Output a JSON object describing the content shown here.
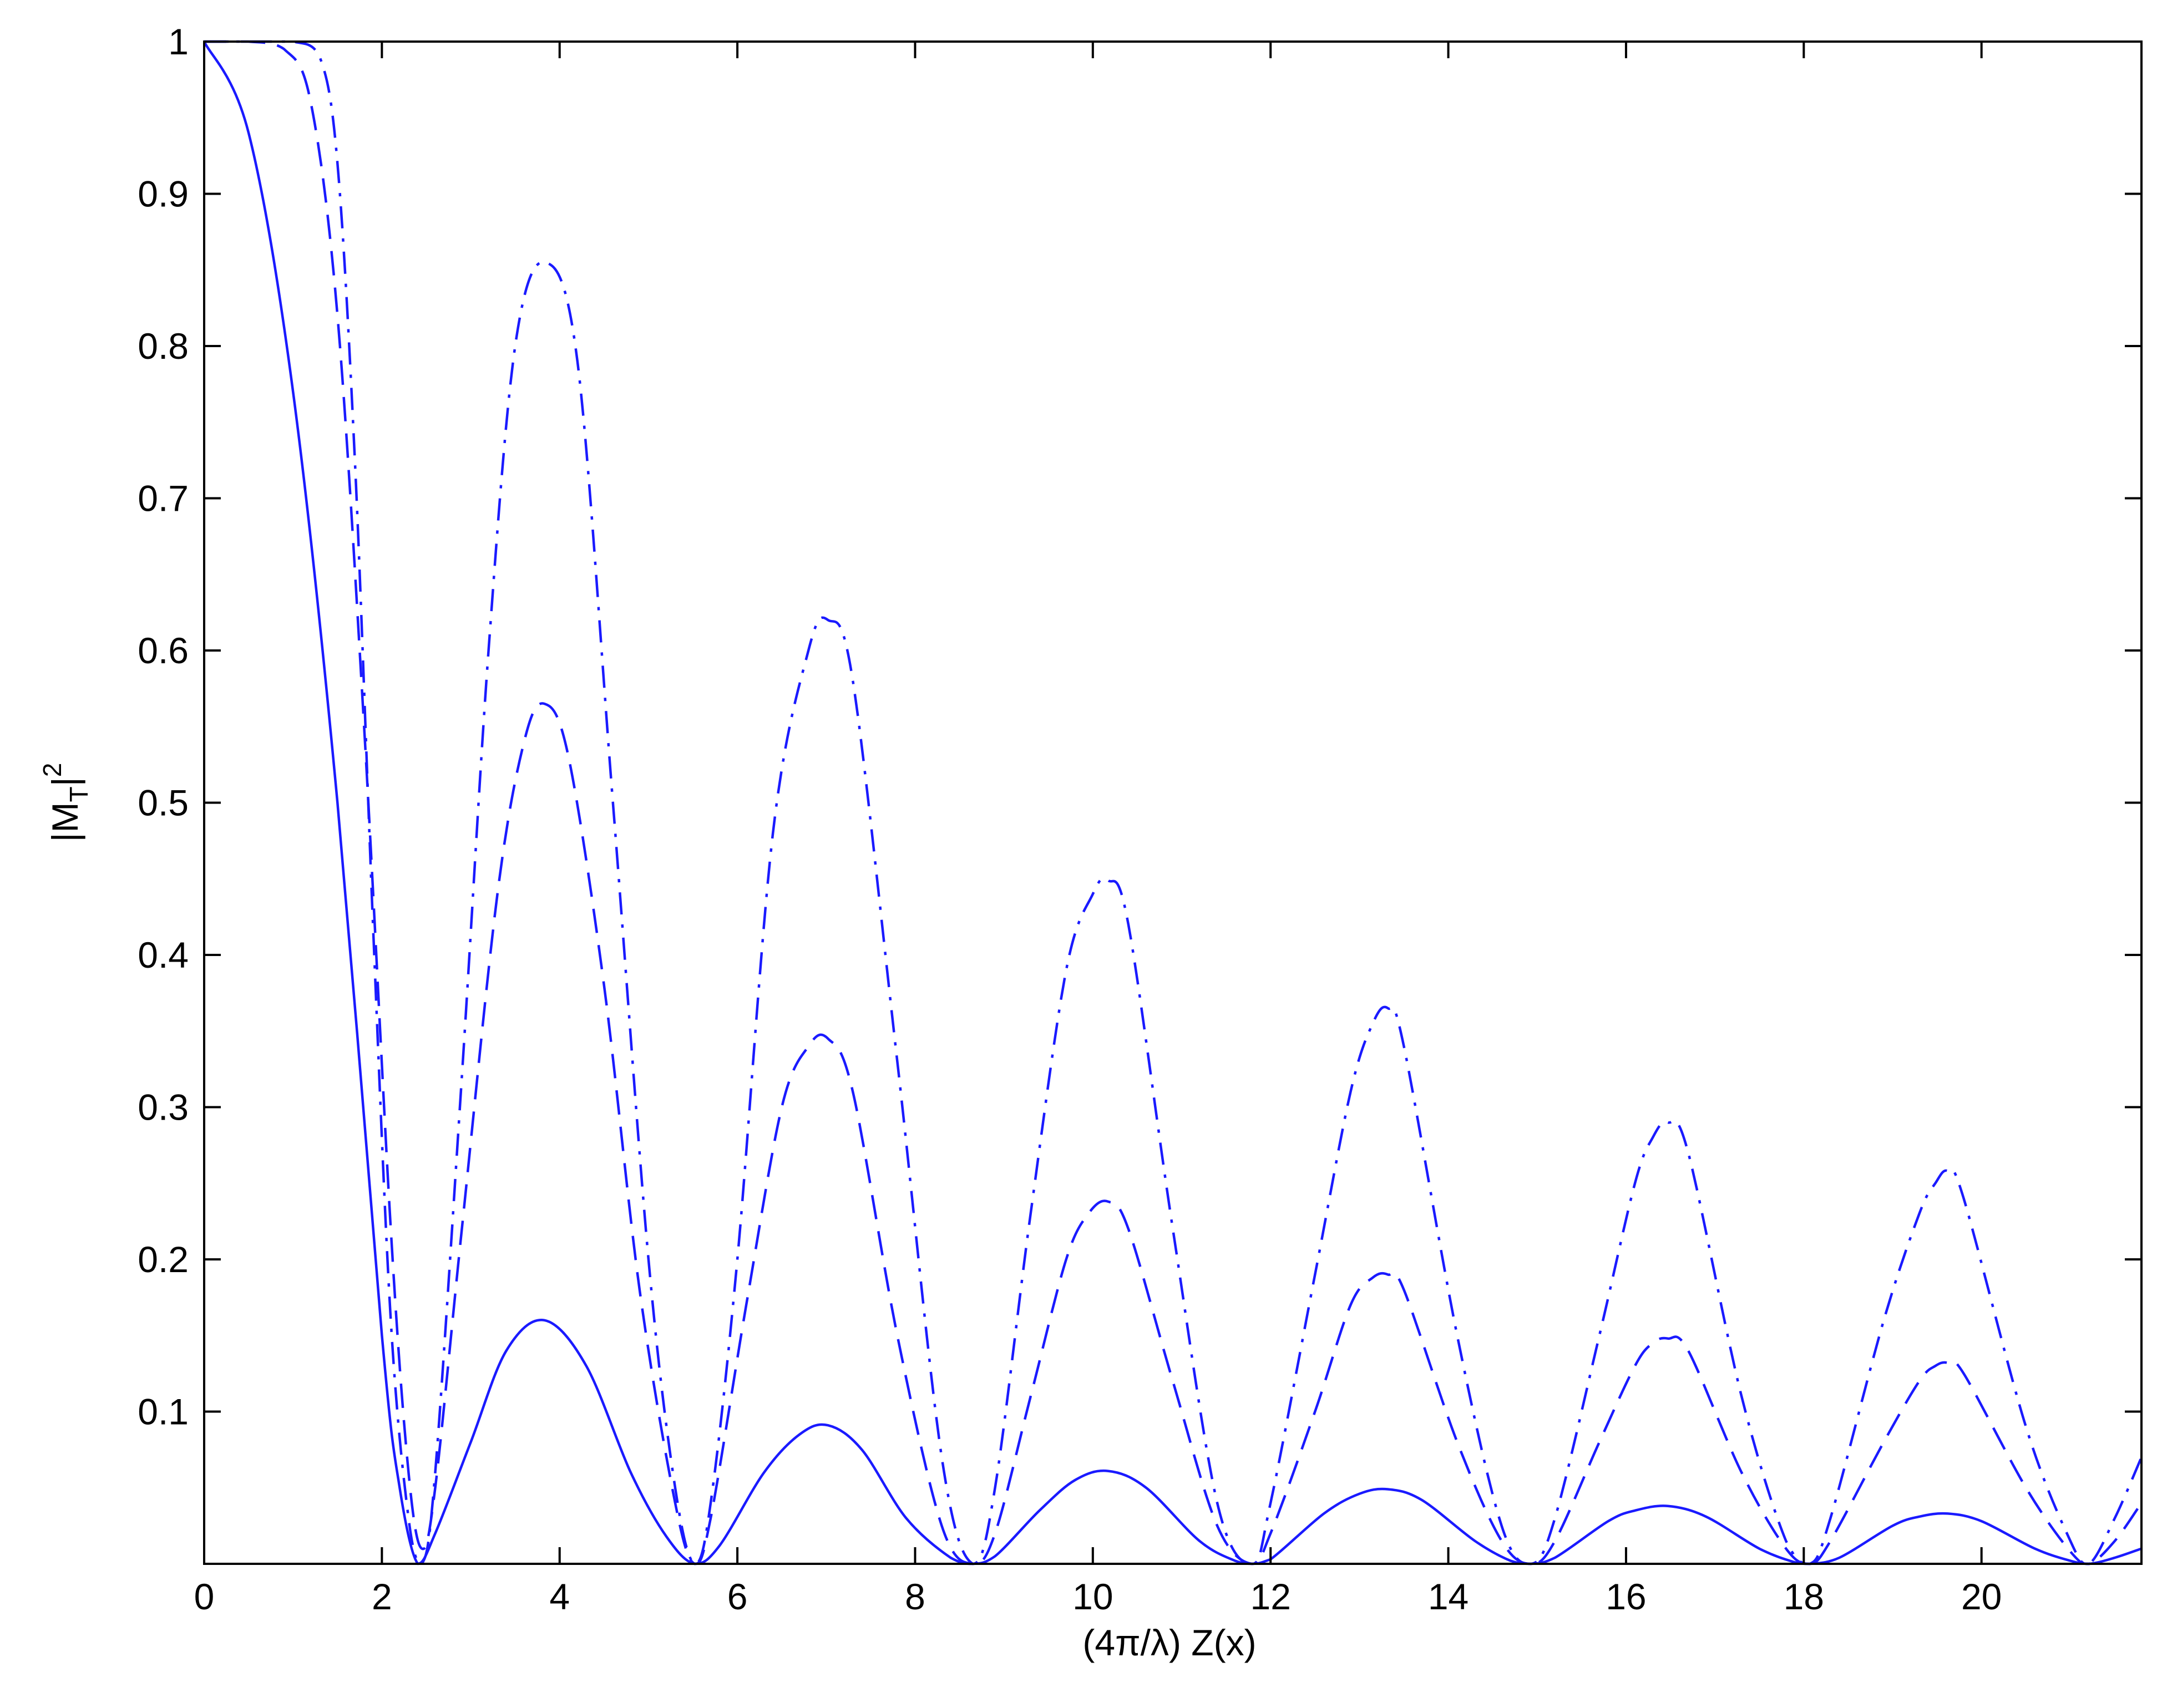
{
  "chart_data": {
    "type": "line",
    "xlabel": "(4π/λ) Z(x)",
    "ylabel": {
      "base": "|M",
      "sub": "T",
      "close": "|",
      "sup": "2"
    },
    "xlim": [
      0,
      21.8
    ],
    "ylim": [
      0,
      1
    ],
    "xticks": [
      "0",
      "2",
      "4",
      "6",
      "8",
      "10",
      "12",
      "14",
      "16",
      "18",
      "20"
    ],
    "yticks": [
      "0.1",
      "0.2",
      "0.3",
      "0.4",
      "0.5",
      "0.6",
      "0.7",
      "0.8",
      "0.9",
      "1"
    ],
    "grid": false,
    "line_color": "#1a1aff",
    "series": [
      {
        "style": "solid",
        "x": [
          0,
          0.5,
          1.0,
          1.5,
          2.0,
          2.2,
          2.405,
          2.6,
          3.0,
          3.4,
          3.83,
          4.3,
          4.8,
          5.2,
          5.52,
          5.8,
          6.3,
          6.7,
          7.02,
          7.4,
          7.9,
          8.4,
          8.65,
          8.9,
          9.4,
          9.8,
          10.17,
          10.6,
          11.2,
          11.6,
          11.79,
          12.0,
          12.6,
          13.0,
          13.32,
          13.7,
          14.3,
          14.7,
          14.93,
          15.2,
          15.8,
          16.1,
          16.47,
          16.9,
          17.5,
          17.9,
          18.07,
          18.4,
          19.0,
          19.3,
          19.62,
          20.0,
          20.6,
          21.0,
          21.21,
          21.5,
          21.8
        ],
        "y": [
          1,
          0.94,
          0.77,
          0.5,
          0.15,
          0.05,
          0,
          0.02,
          0.08,
          0.14,
          0.16,
          0.13,
          0.06,
          0.018,
          0,
          0.012,
          0.06,
          0.085,
          0.091,
          0.075,
          0.03,
          0.004,
          0,
          0.005,
          0.035,
          0.055,
          0.061,
          0.05,
          0.015,
          0.002,
          0,
          0.003,
          0.033,
          0.046,
          0.049,
          0.042,
          0.015,
          0.002,
          0,
          0.004,
          0.028,
          0.035,
          0.038,
          0.031,
          0.01,
          0.001,
          0,
          0.004,
          0.025,
          0.031,
          0.033,
          0.028,
          0.01,
          0.002,
          0,
          0.004,
          0.01
        ]
      },
      {
        "style": "dashed",
        "x": [
          0,
          0.5,
          0.9,
          1.2,
          1.5,
          1.8,
          2.1,
          2.3,
          2.45,
          2.6,
          2.9,
          3.3,
          3.6,
          3.83,
          4.1,
          4.5,
          4.9,
          5.3,
          5.52,
          5.7,
          6.1,
          6.5,
          6.8,
          7.02,
          7.3,
          7.8,
          8.3,
          8.65,
          8.9,
          9.3,
          9.7,
          9.95,
          10.17,
          10.4,
          10.9,
          11.4,
          11.79,
          12.0,
          12.5,
          12.9,
          13.15,
          13.32,
          13.5,
          14.1,
          14.6,
          14.93,
          15.2,
          15.7,
          16.1,
          16.3,
          16.47,
          16.7,
          17.3,
          17.8,
          18.07,
          18.3,
          18.9,
          19.3,
          19.48,
          19.62,
          19.8,
          20.5,
          21.0,
          21.21,
          21.5,
          21.8
        ],
        "y": [
          1,
          1,
          0.995,
          0.96,
          0.82,
          0.55,
          0.22,
          0.06,
          0.01,
          0.05,
          0.22,
          0.44,
          0.54,
          0.565,
          0.53,
          0.38,
          0.18,
          0.04,
          0,
          0.03,
          0.17,
          0.3,
          0.34,
          0.345,
          0.31,
          0.15,
          0.025,
          0,
          0.02,
          0.11,
          0.2,
          0.23,
          0.238,
          0.22,
          0.12,
          0.025,
          0,
          0.02,
          0.1,
          0.17,
          0.188,
          0.19,
          0.18,
          0.08,
          0.015,
          0,
          0.015,
          0.08,
          0.13,
          0.145,
          0.148,
          0.14,
          0.06,
          0.01,
          0,
          0.015,
          0.08,
          0.12,
          0.13,
          0.132,
          0.125,
          0.05,
          0.008,
          0,
          0.015,
          0.04
        ]
      },
      {
        "style": "dashdot",
        "x": [
          0,
          0.6,
          1.0,
          1.3,
          1.5,
          1.7,
          1.9,
          2.1,
          2.3,
          2.45,
          2.6,
          2.9,
          3.2,
          3.5,
          3.83,
          4.2,
          4.6,
          5.0,
          5.3,
          5.52,
          5.7,
          6.0,
          6.4,
          6.8,
          7.02,
          7.3,
          7.8,
          8.3,
          8.65,
          8.9,
          9.3,
          9.7,
          10.0,
          10.17,
          10.4,
          10.9,
          11.4,
          11.79,
          12.0,
          12.5,
          12.9,
          13.15,
          13.32,
          13.5,
          14.1,
          14.6,
          14.93,
          15.2,
          15.7,
          16.1,
          16.3,
          16.47,
          16.7,
          17.3,
          17.8,
          18.07,
          18.3,
          18.9,
          19.3,
          19.48,
          19.62,
          19.8,
          20.5,
          21.0,
          21.21,
          21.5,
          21.8
        ],
        "y": [
          1,
          1,
          1,
          0.99,
          0.92,
          0.72,
          0.42,
          0.16,
          0.03,
          0,
          0.06,
          0.32,
          0.6,
          0.8,
          0.855,
          0.79,
          0.5,
          0.2,
          0.05,
          0,
          0.04,
          0.2,
          0.48,
          0.6,
          0.62,
          0.58,
          0.33,
          0.07,
          0,
          0.05,
          0.23,
          0.39,
          0.44,
          0.449,
          0.42,
          0.22,
          0.04,
          0,
          0.04,
          0.19,
          0.31,
          0.355,
          0.365,
          0.34,
          0.15,
          0.025,
          0,
          0.03,
          0.15,
          0.25,
          0.28,
          0.29,
          0.27,
          0.11,
          0.015,
          0,
          0.03,
          0.16,
          0.23,
          0.25,
          0.258,
          0.24,
          0.09,
          0.015,
          0,
          0.03,
          0.07
        ]
      }
    ]
  }
}
